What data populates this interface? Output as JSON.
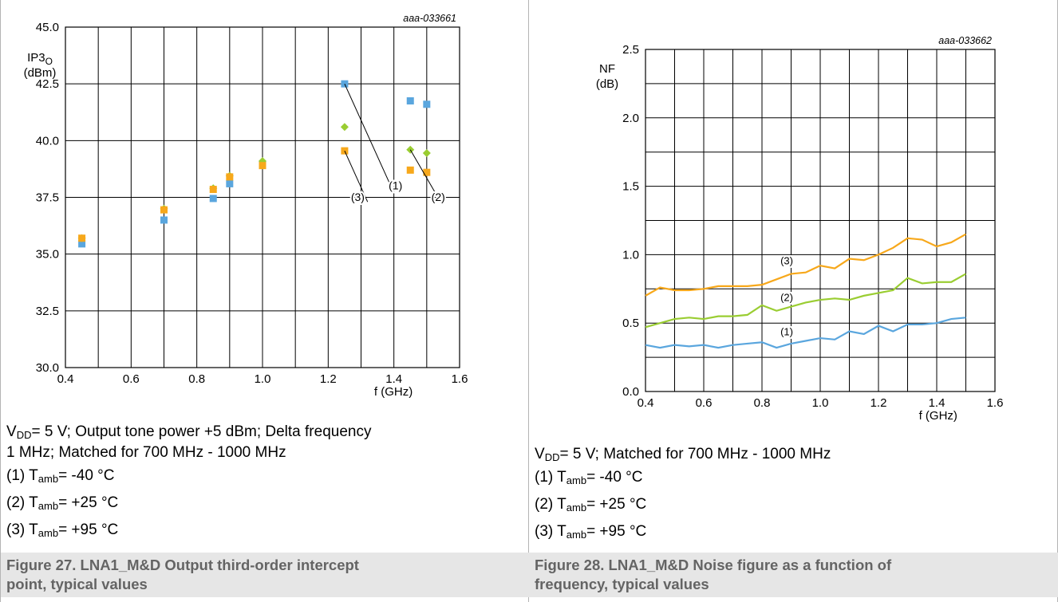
{
  "chart_data": [
    {
      "type": "scatter",
      "code": "aaa-033661",
      "ylabel_main": "IP3",
      "ylabel_sub": "O",
      "ylabel_unit": "(dBm)",
      "xlabel": "f (GHz)",
      "xlim": [
        0.4,
        1.6
      ],
      "ylim": [
        30.0,
        45.0
      ],
      "xticks": [
        "0.4",
        "0.6",
        "0.8",
        "1.0",
        "1.2",
        "1.4",
        "1.6"
      ],
      "yticks": [
        "30.0",
        "32.5",
        "35.0",
        "37.5",
        "40.0",
        "42.5",
        "45.0"
      ],
      "grid": true,
      "series": [
        {
          "name": "(1)",
          "color": "#5aa6de",
          "marker": "square",
          "x": [
            0.45,
            0.7,
            0.85,
            0.9,
            1.0,
            1.25,
            1.45,
            1.5
          ],
          "y": [
            35.45,
            36.5,
            37.45,
            38.1,
            38.95,
            42.5,
            41.75,
            41.6
          ]
        },
        {
          "name": "(2)",
          "color": "#9acd32",
          "marker": "diamond",
          "x": [
            0.45,
            0.7,
            0.85,
            0.9,
            1.0,
            1.25,
            1.45,
            1.5
          ],
          "y": [
            35.7,
            37.0,
            37.9,
            38.45,
            39.1,
            40.6,
            39.6,
            39.45
          ]
        },
        {
          "name": "(3)",
          "color": "#f7a81b",
          "marker": "square",
          "x": [
            0.45,
            0.7,
            0.85,
            0.9,
            1.0,
            1.25,
            1.45,
            1.5
          ],
          "y": [
            35.7,
            36.95,
            37.85,
            38.4,
            38.9,
            39.55,
            38.7,
            38.6
          ]
        }
      ],
      "annotations": [
        "(1)",
        "(2)",
        "(3)"
      ]
    },
    {
      "type": "line",
      "code": "aaa-033662",
      "ylabel_main": "NF",
      "ylabel_unit": "(dB)",
      "xlabel": "f (GHz)",
      "xlim": [
        0.4,
        1.6
      ],
      "ylim": [
        0.0,
        2.5
      ],
      "xticks": [
        "0.4",
        "0.6",
        "0.8",
        "1.0",
        "1.2",
        "1.4",
        "1.6"
      ],
      "yticks": [
        "0.0",
        "0.5",
        "1.0",
        "1.5",
        "2.0",
        "2.5"
      ],
      "grid": true,
      "x": [
        0.4,
        0.45,
        0.5,
        0.55,
        0.6,
        0.65,
        0.7,
        0.75,
        0.8,
        0.85,
        0.9,
        0.95,
        1.0,
        1.05,
        1.1,
        1.15,
        1.2,
        1.25,
        1.3,
        1.35,
        1.4,
        1.45,
        1.5
      ],
      "series": [
        {
          "name": "(1)",
          "color": "#5aa6de",
          "values": [
            0.34,
            0.32,
            0.34,
            0.33,
            0.34,
            0.32,
            0.34,
            0.35,
            0.36,
            0.32,
            0.35,
            0.37,
            0.39,
            0.38,
            0.44,
            0.42,
            0.48,
            0.44,
            0.49,
            0.49,
            0.5,
            0.53,
            0.54
          ]
        },
        {
          "name": "(2)",
          "color": "#9acd32",
          "values": [
            0.47,
            0.5,
            0.53,
            0.54,
            0.53,
            0.55,
            0.55,
            0.56,
            0.63,
            0.59,
            0.62,
            0.65,
            0.67,
            0.68,
            0.67,
            0.7,
            0.72,
            0.74,
            0.83,
            0.79,
            0.8,
            0.8,
            0.86
          ]
        },
        {
          "name": "(3)",
          "color": "#f7a81b",
          "values": [
            0.7,
            0.76,
            0.74,
            0.74,
            0.75,
            0.77,
            0.77,
            0.77,
            0.78,
            0.82,
            0.86,
            0.87,
            0.92,
            0.9,
            0.97,
            0.96,
            1.0,
            1.05,
            1.12,
            1.11,
            1.06,
            1.09,
            1.15
          ]
        }
      ],
      "annotations": [
        "(1)",
        "(2)",
        "(3)"
      ]
    }
  ],
  "captions": {
    "left": {
      "line1_vdd": "V",
      "line1_vdd_sub": "DD",
      "line1_rest": "= 5 V; Output tone power +5 dBm; Delta frequency",
      "line2": "1 MHz; Matched for 700 MHz - 1000 MHz",
      "temps": [
        {
          "prefix": "(1) T",
          "sub": "amb",
          "value": "= -40 °C"
        },
        {
          "prefix": "(2) T",
          "sub": "amb",
          "value": "= +25 °C"
        },
        {
          "prefix": "(3) T",
          "sub": "amb",
          "value": "= +95 °C"
        }
      ],
      "figure_title_1": "Figure 27.  LNA1_M&D Output third-order intercept",
      "figure_title_2": "point, typical values"
    },
    "right": {
      "line1_vdd": "V",
      "line1_vdd_sub": "DD",
      "line1_rest": "= 5 V; Matched for 700 MHz - 1000 MHz",
      "temps": [
        {
          "prefix": "(1) T",
          "sub": "amb",
          "value": "= -40 °C"
        },
        {
          "prefix": "(2) T",
          "sub": "amb",
          "value": "= +25 °C"
        },
        {
          "prefix": "(3) T",
          "sub": "amb",
          "value": "= +95 °C"
        }
      ],
      "figure_title_1": "Figure 28.  LNA1_M&D Noise figure as a function of",
      "figure_title_2": "frequency, typical values"
    }
  }
}
